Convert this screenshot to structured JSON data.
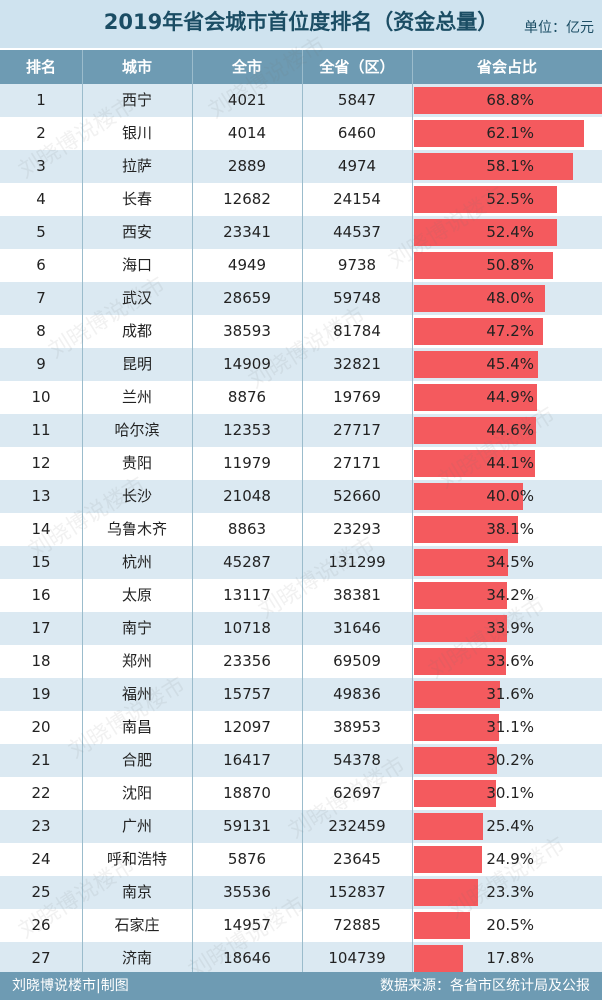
{
  "title": "2019年省会城市首位度排名（资金总量）",
  "unit": "单位：亿元",
  "headers": [
    "排名",
    "城市",
    "全市",
    "全省（区）",
    "省会占比"
  ],
  "footer": {
    "left": "刘晓博说楼市|制图",
    "right": "数据来源：各省市区统计局及公报"
  },
  "watermark": "刘晓博说楼市",
  "colors": {
    "title_bg": "#cfe3ef",
    "header_bg": "#6e9bb3",
    "row_even": "#dbe9f2",
    "row_odd": "#ffffff",
    "bar": "#f45a5e",
    "title_text": "#1b4d64"
  },
  "chart_data": {
    "type": "table",
    "title": "2019年省会城市首位度排名（资金总量）",
    "columns": [
      "排名",
      "城市",
      "全市",
      "全省（区）",
      "省会占比"
    ],
    "rows": [
      {
        "rank": "1",
        "city": "西宁",
        "city_total": "4021",
        "province_total": "5847",
        "share": "68.8%",
        "share_value": 68.8
      },
      {
        "rank": "2",
        "city": "银川",
        "city_total": "4014",
        "province_total": "6460",
        "share": "62.1%",
        "share_value": 62.1
      },
      {
        "rank": "3",
        "city": "拉萨",
        "city_total": "2889",
        "province_total": "4974",
        "share": "58.1%",
        "share_value": 58.1
      },
      {
        "rank": "4",
        "city": "长春",
        "city_total": "12682",
        "province_total": "24154",
        "share": "52.5%",
        "share_value": 52.5
      },
      {
        "rank": "5",
        "city": "西安",
        "city_total": "23341",
        "province_total": "44537",
        "share": "52.4%",
        "share_value": 52.4
      },
      {
        "rank": "6",
        "city": "海口",
        "city_total": "4949",
        "province_total": "9738",
        "share": "50.8%",
        "share_value": 50.8
      },
      {
        "rank": "7",
        "city": "武汉",
        "city_total": "28659",
        "province_total": "59748",
        "share": "48.0%",
        "share_value": 48.0
      },
      {
        "rank": "8",
        "city": "成都",
        "city_total": "38593",
        "province_total": "81784",
        "share": "47.2%",
        "share_value": 47.2
      },
      {
        "rank": "9",
        "city": "昆明",
        "city_total": "14909",
        "province_total": "32821",
        "share": "45.4%",
        "share_value": 45.4
      },
      {
        "rank": "10",
        "city": "兰州",
        "city_total": "8876",
        "province_total": "19769",
        "share": "44.9%",
        "share_value": 44.9
      },
      {
        "rank": "11",
        "city": "哈尔滨",
        "city_total": "12353",
        "province_total": "27717",
        "share": "44.6%",
        "share_value": 44.6
      },
      {
        "rank": "12",
        "city": "贵阳",
        "city_total": "11979",
        "province_total": "27171",
        "share": "44.1%",
        "share_value": 44.1
      },
      {
        "rank": "13",
        "city": "长沙",
        "city_total": "21048",
        "province_total": "52660",
        "share": "40.0%",
        "share_value": 40.0
      },
      {
        "rank": "14",
        "city": "乌鲁木齐",
        "city_total": "8863",
        "province_total": "23293",
        "share": "38.1%",
        "share_value": 38.1
      },
      {
        "rank": "15",
        "city": "杭州",
        "city_total": "45287",
        "province_total": "131299",
        "share": "34.5%",
        "share_value": 34.5
      },
      {
        "rank": "16",
        "city": "太原",
        "city_total": "13117",
        "province_total": "38381",
        "share": "34.2%",
        "share_value": 34.2
      },
      {
        "rank": "17",
        "city": "南宁",
        "city_total": "10718",
        "province_total": "31646",
        "share": "33.9%",
        "share_value": 33.9
      },
      {
        "rank": "18",
        "city": "郑州",
        "city_total": "23356",
        "province_total": "69509",
        "share": "33.6%",
        "share_value": 33.6
      },
      {
        "rank": "19",
        "city": "福州",
        "city_total": "15757",
        "province_total": "49836",
        "share": "31.6%",
        "share_value": 31.6
      },
      {
        "rank": "20",
        "city": "南昌",
        "city_total": "12097",
        "province_total": "38953",
        "share": "31.1%",
        "share_value": 31.1
      },
      {
        "rank": "21",
        "city": "合肥",
        "city_total": "16417",
        "province_total": "54378",
        "share": "30.2%",
        "share_value": 30.2
      },
      {
        "rank": "22",
        "city": "沈阳",
        "city_total": "18870",
        "province_total": "62697",
        "share": "30.1%",
        "share_value": 30.1
      },
      {
        "rank": "23",
        "city": "广州",
        "city_total": "59131",
        "province_total": "232459",
        "share": "25.4%",
        "share_value": 25.4
      },
      {
        "rank": "24",
        "city": "呼和浩特",
        "city_total": "5876",
        "province_total": "23645",
        "share": "24.9%",
        "share_value": 24.9
      },
      {
        "rank": "25",
        "city": "南京",
        "city_total": "35536",
        "province_total": "152837",
        "share": "23.3%",
        "share_value": 23.3
      },
      {
        "rank": "26",
        "city": "石家庄",
        "city_total": "14957",
        "province_total": "72885",
        "share": "20.5%",
        "share_value": 20.5
      },
      {
        "rank": "27",
        "city": "济南",
        "city_total": "18646",
        "province_total": "104739",
        "share": "17.8%",
        "share_value": 17.8
      }
    ]
  }
}
